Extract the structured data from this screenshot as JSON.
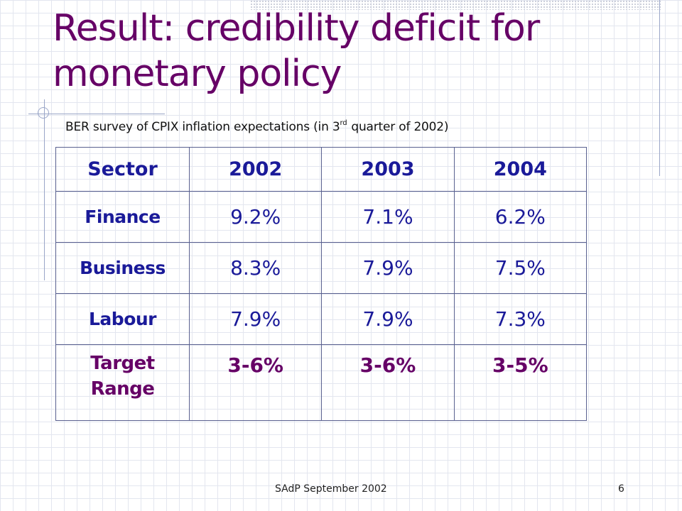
{
  "slide": {
    "title": "Result: credibility deficit for monetary policy",
    "subtitle_before": "BER survey of CPIX inflation expectations (in 3",
    "subtitle_sup": "rd",
    "subtitle_after": "quarter of 2002)",
    "footer": "SAdP September 2002",
    "page_number": "6"
  },
  "table": {
    "headers": [
      "Sector",
      "2002",
      "2003",
      "2004"
    ],
    "rows": [
      {
        "sector": "Finance",
        "values": [
          "9.2%",
          "7.1%",
          "6.2%"
        ]
      },
      {
        "sector": "Business",
        "values": [
          "8.3%",
          "7.9%",
          "7.5%"
        ]
      },
      {
        "sector": "Labour",
        "values": [
          "7.9%",
          "7.9%",
          "7.3%"
        ]
      },
      {
        "sector": "Target Range",
        "values": [
          "3-6%",
          "3-6%",
          "3-5%"
        ]
      }
    ]
  },
  "colors": {
    "title": "#660066",
    "table_text": "#1a1a99",
    "target_row": "#660066",
    "border": "#5a6190"
  }
}
